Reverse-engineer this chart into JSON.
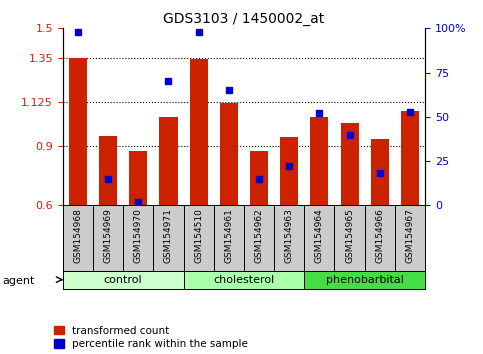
{
  "title": "GDS3103 / 1450002_at",
  "samples": [
    "GSM154968",
    "GSM154969",
    "GSM154970",
    "GSM154971",
    "GSM154510",
    "GSM154961",
    "GSM154962",
    "GSM154963",
    "GSM154964",
    "GSM154965",
    "GSM154966",
    "GSM154967"
  ],
  "bar_values": [
    1.35,
    0.95,
    0.875,
    1.05,
    1.345,
    1.12,
    0.875,
    0.945,
    1.05,
    1.02,
    0.935,
    1.08
  ],
  "percentile_values": [
    98,
    15,
    2,
    70,
    98,
    65,
    15,
    22,
    52,
    40,
    18,
    53
  ],
  "bar_bottom": 0.6,
  "ylim_left": [
    0.6,
    1.5
  ],
  "ylim_right": [
    0,
    100
  ],
  "yticks_left": [
    0.6,
    0.9,
    1.125,
    1.35,
    1.5
  ],
  "ytick_labels_left": [
    "0.6",
    "0.9",
    "1.125",
    "1.35",
    "1.5"
  ],
  "yticks_right": [
    0,
    25,
    50,
    75,
    100
  ],
  "ytick_labels_right": [
    "0",
    "25",
    "50",
    "75",
    "100%"
  ],
  "bar_color": "#cc2200",
  "dot_color": "#0000cc",
  "groups": [
    {
      "label": "control",
      "start": 0,
      "end": 4,
      "color": "#ccffcc"
    },
    {
      "label": "cholesterol",
      "start": 4,
      "end": 8,
      "color": "#aaffaa"
    },
    {
      "label": "phenobarbital",
      "start": 8,
      "end": 12,
      "color": "#44dd44"
    }
  ],
  "agent_label": "agent",
  "legend_items": [
    {
      "label": "transformed count",
      "color": "#cc2200"
    },
    {
      "label": "percentile rank within the sample",
      "color": "#0000cc"
    }
  ],
  "grid_dotted_yticks": [
    0.9,
    1.125,
    1.35
  ],
  "background_color": "#ffffff",
  "tick_area_color": "#cccccc",
  "bar_width": 0.6
}
